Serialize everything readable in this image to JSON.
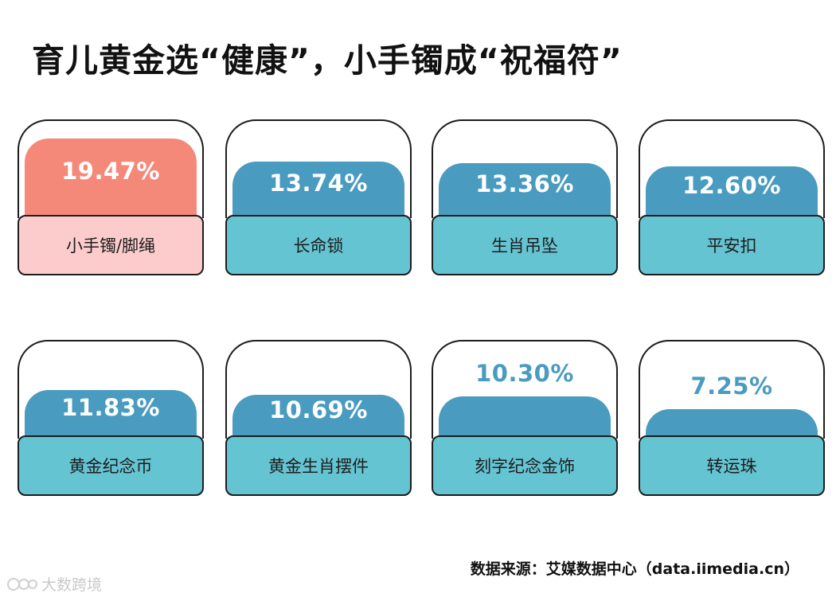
{
  "title": "育儿黄金选“健康”，小手镯成“祝福符”",
  "source": "数据来源：艾媒数据中心（data.iimedia.cn）",
  "watermark": "大数跨境",
  "colors": {
    "highlight_bar": "#f4897a",
    "highlight_label_bg": "#fccccc",
    "bar": "#4a9bc0",
    "label_bg": "#64c4d2",
    "outline": "#1d1d1d"
  },
  "chart_data": {
    "type": "bar",
    "title": "育儿黄金选“健康”，小手镯成“祝福符”",
    "categories": [
      "小手镯/脚绳",
      "长命锁",
      "生肖吊坠",
      "平安扣",
      "黄金纪念币",
      "黄金生肖摆件",
      "刻字纪念金饰",
      "转运珠"
    ],
    "values": [
      19.47,
      13.74,
      13.36,
      12.6,
      11.83,
      10.69,
      10.3,
      7.25
    ],
    "value_labels": [
      "19.47%",
      "13.74%",
      "13.36%",
      "12.60%",
      "11.83%",
      "10.69%",
      "10.30%",
      "7.25%"
    ],
    "unit": "%",
    "highlight_index": 0,
    "ylim": [
      0,
      20
    ]
  }
}
